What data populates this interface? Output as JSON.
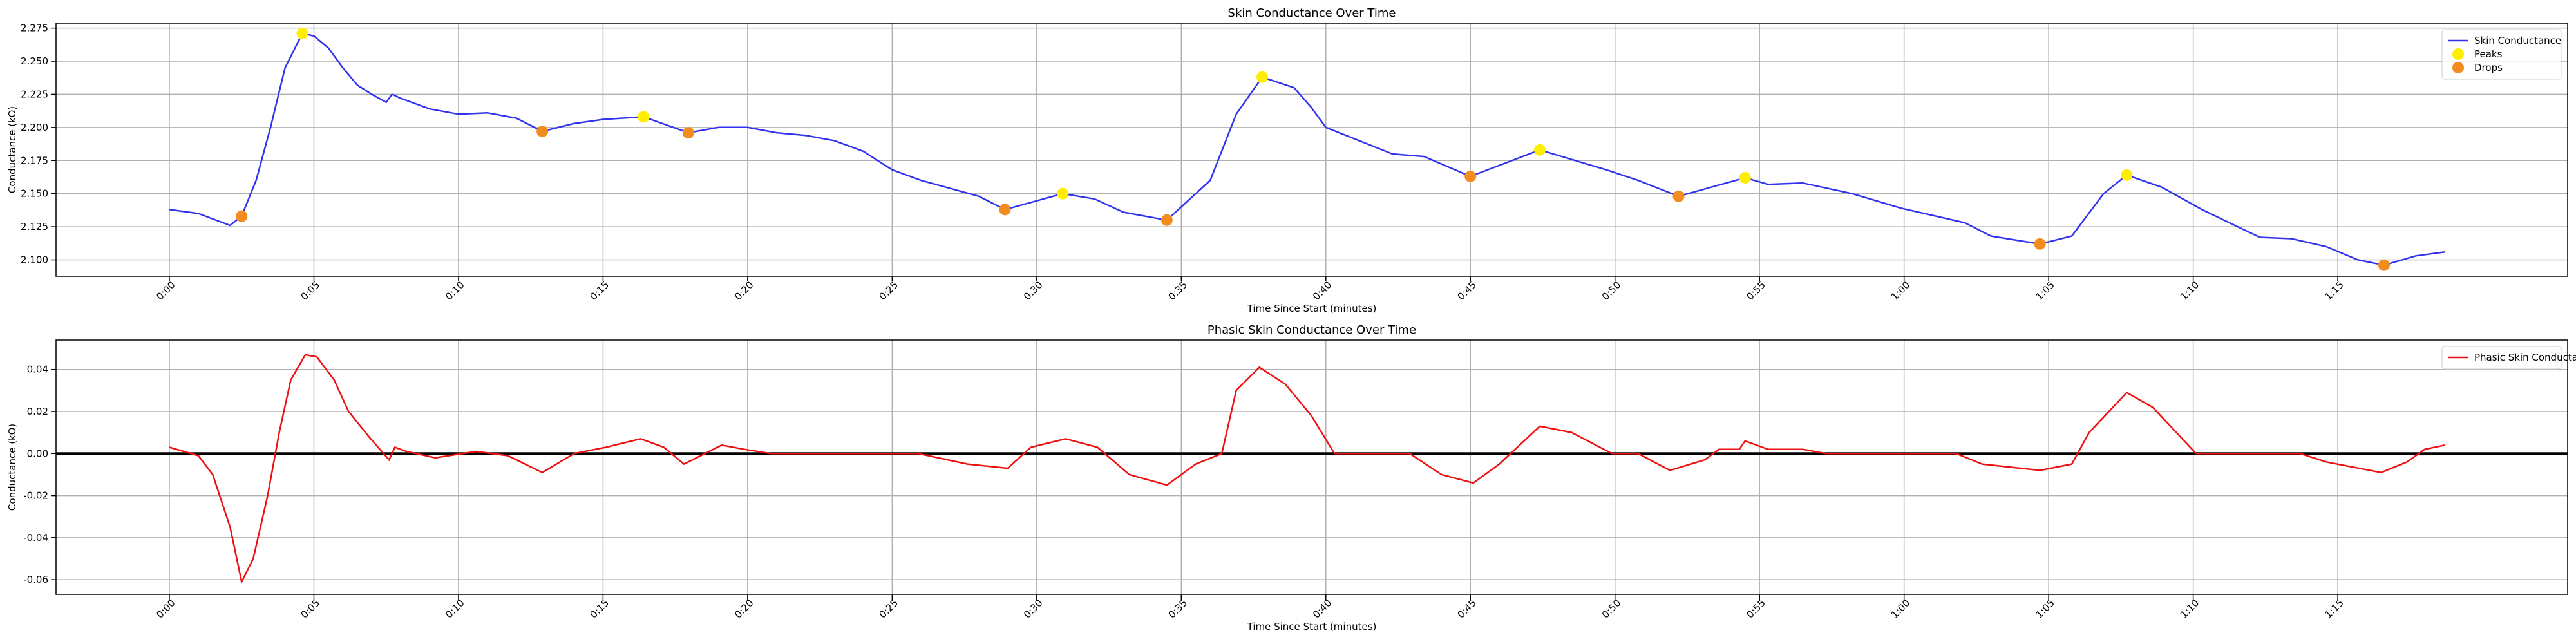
{
  "chart_data": [
    {
      "type": "line",
      "title": "Skin Conductance Over Time",
      "xlabel": "Time Since Start (minutes)",
      "ylabel": "Conductance (kΩ)",
      "xlim": [
        -3.92,
        82.95
      ],
      "ylim": [
        2.0876,
        2.2787
      ],
      "grid": true,
      "legend": "upper right",
      "xticks": [
        {
          "value": 0,
          "label": "0:00"
        },
        {
          "value": 5,
          "label": "0:05"
        },
        {
          "value": 10,
          "label": "0:10"
        },
        {
          "value": 15,
          "label": "0:15"
        },
        {
          "value": 20,
          "label": "0:20"
        },
        {
          "value": 25,
          "label": "0:25"
        },
        {
          "value": 30,
          "label": "0:30"
        },
        {
          "value": 35,
          "label": "0:35"
        },
        {
          "value": 40,
          "label": "0:40"
        },
        {
          "value": 45,
          "label": "0:45"
        },
        {
          "value": 50,
          "label": "0:50"
        },
        {
          "value": 55,
          "label": "0:55"
        },
        {
          "value": 60,
          "label": "1:00"
        },
        {
          "value": 65,
          "label": "1:05"
        },
        {
          "value": 70,
          "label": "1:10"
        },
        {
          "value": 75,
          "label": "1:15"
        }
      ],
      "yticks": [
        {
          "value": 2.1,
          "label": "2.100"
        },
        2.125,
        {
          "value": 2.15,
          "label": "2.150"
        },
        2.175,
        {
          "value": 2.2,
          "label": "2.200"
        },
        2.225,
        {
          "value": 2.25,
          "label": "2.250"
        },
        2.275
      ],
      "series": [
        {
          "name": "Skin Conductance",
          "type": "line",
          "color": "#3333ee",
          "x": [
            0,
            1,
            2.1,
            2.5,
            3,
            3.5,
            4,
            4.6,
            5,
            5.5,
            6,
            6.5,
            7,
            7.5,
            7.7,
            8,
            9,
            10,
            11,
            12,
            12.9,
            14,
            15,
            16.4,
            17.95,
            19,
            20,
            21,
            22,
            23,
            24,
            25,
            26,
            27,
            28,
            28.9,
            30.9,
            32,
            33,
            34.5,
            36,
            36.9,
            37.8,
            38.9,
            39.5,
            40,
            42.3,
            43.4,
            45,
            47.4,
            49.7,
            50.8,
            52.2,
            54.5,
            55.3,
            56.5,
            58.2,
            59.9,
            62.1,
            63,
            64.7,
            65.8,
            66.9,
            67.7,
            68.9,
            70.3,
            72.3,
            73.4,
            74.6,
            75.7,
            76.6,
            77.7,
            78.7
          ],
          "values": [
            2.138,
            2.135,
            2.126,
            2.133,
            2.16,
            2.2,
            2.245,
            2.271,
            2.269,
            2.26,
            2.245,
            2.232,
            2.225,
            2.219,
            2.225,
            2.222,
            2.214,
            2.21,
            2.211,
            2.207,
            2.197,
            2.203,
            2.206,
            2.208,
            2.196,
            2.2,
            2.2,
            2.196,
            2.194,
            2.19,
            2.182,
            2.168,
            2.16,
            2.154,
            2.148,
            2.138,
            2.15,
            2.146,
            2.136,
            2.13,
            2.16,
            2.21,
            2.238,
            2.23,
            2.215,
            2.2,
            2.18,
            2.178,
            2.163,
            2.183,
            2.168,
            2.16,
            2.148,
            2.162,
            2.157,
            2.158,
            2.15,
            2.139,
            2.128,
            2.118,
            2.112,
            2.118,
            2.15,
            2.164,
            2.155,
            2.138,
            2.117,
            2.116,
            2.11,
            2.1,
            2.096,
            2.103,
            2.106
          ]
        },
        {
          "name": "Peaks",
          "type": "scatter",
          "color": "#ffee00",
          "x": [
            4.6,
            16.4,
            30.9,
            37.8,
            47.4,
            54.5,
            67.7
          ],
          "values": [
            2.271,
            2.208,
            2.15,
            2.238,
            2.183,
            2.162,
            2.164
          ]
        },
        {
          "name": "Drops",
          "type": "scatter",
          "color": "#f28c1e",
          "x": [
            2.5,
            12.9,
            17.95,
            28.9,
            34.5,
            45,
            52.2,
            64.7,
            76.6
          ],
          "values": [
            2.133,
            2.197,
            2.196,
            2.138,
            2.13,
            2.163,
            2.148,
            2.112,
            2.096
          ]
        }
      ]
    },
    {
      "type": "line",
      "title": "Phasic Skin Conductance Over Time",
      "xlabel": "Time Since Start (minutes)",
      "ylabel": "Conductance (kΩ)",
      "xlim": [
        -3.92,
        82.95
      ],
      "ylim": [
        -0.067,
        0.054
      ],
      "grid": true,
      "legend": "upper right",
      "hline": {
        "y": 0,
        "color": "#000000"
      },
      "xticks": [
        {
          "value": 0,
          "label": "0:00"
        },
        {
          "value": 5,
          "label": "0:05"
        },
        {
          "value": 10,
          "label": "0:10"
        },
        {
          "value": 15,
          "label": "0:15"
        },
        {
          "value": 20,
          "label": "0:20"
        },
        {
          "value": 25,
          "label": "0:25"
        },
        {
          "value": 30,
          "label": "0:30"
        },
        {
          "value": 35,
          "label": "0:35"
        },
        {
          "value": 40,
          "label": "0:40"
        },
        {
          "value": 45,
          "label": "0:45"
        },
        {
          "value": 50,
          "label": "0:50"
        },
        {
          "value": 55,
          "label": "0:55"
        },
        {
          "value": 60,
          "label": "1:00"
        },
        {
          "value": 65,
          "label": "1:05"
        },
        {
          "value": 70,
          "label": "1:10"
        },
        {
          "value": 75,
          "label": "1:15"
        }
      ],
      "yticks": [
        -0.06,
        -0.04,
        -0.02,
        {
          "value": 0,
          "label": "0.00"
        },
        0.02,
        0.04
      ],
      "series": [
        {
          "name": "Phasic Skin Conductance",
          "type": "line",
          "color": "#ee1111",
          "x": [
            0,
            1,
            1.5,
            2.1,
            2.5,
            2.9,
            3.4,
            3.8,
            4.2,
            4.7,
            5.1,
            5.7,
            6.2,
            6.9,
            7.6,
            7.8,
            8.2,
            9.2,
            10.6,
            11.7,
            12.9,
            14,
            15.1,
            16.3,
            17.1,
            17.8,
            19.1,
            19.9,
            20.8,
            25.9,
            27.6,
            29,
            29.8,
            31,
            32.1,
            33.2,
            34.5,
            35.5,
            36.4,
            36.9,
            37.7,
            38.6,
            39.5,
            40.3,
            42.9,
            44,
            45.1,
            46,
            47.4,
            48.5,
            49.9,
            50.8,
            51.9,
            53.1,
            53.6,
            54.3,
            54.5,
            55.3,
            56.5,
            57.3,
            61.8,
            62.7,
            64.7,
            65.8,
            66.4,
            67.7,
            68.6,
            70.1,
            73.7,
            74.6,
            76.5,
            77.4,
            78,
            78.7
          ],
          "values": [
            0.003,
            -0.001,
            -0.01,
            -0.035,
            -0.061,
            -0.05,
            -0.02,
            0.01,
            0.035,
            0.047,
            0.046,
            0.035,
            0.02,
            0.008,
            -0.003,
            0.003,
            0.001,
            -0.002,
            0.001,
            -0.001,
            -0.009,
            0,
            0.003,
            0.007,
            0.003,
            -0.005,
            0.004,
            0.002,
            0,
            0,
            -0.005,
            -0.007,
            0.003,
            0.007,
            0.003,
            -0.01,
            -0.015,
            -0.005,
            0,
            0.03,
            0.041,
            0.033,
            0.018,
            0,
            0,
            -0.01,
            -0.014,
            -0.005,
            0.013,
            0.01,
            0,
            0,
            -0.008,
            -0.003,
            0.002,
            0.002,
            0.006,
            0.002,
            0.002,
            0,
            0,
            -0.005,
            -0.008,
            -0.005,
            0.01,
            0.029,
            0.022,
            0,
            0,
            -0.004,
            -0.009,
            -0.004,
            0.002,
            0.004
          ]
        }
      ]
    }
  ]
}
